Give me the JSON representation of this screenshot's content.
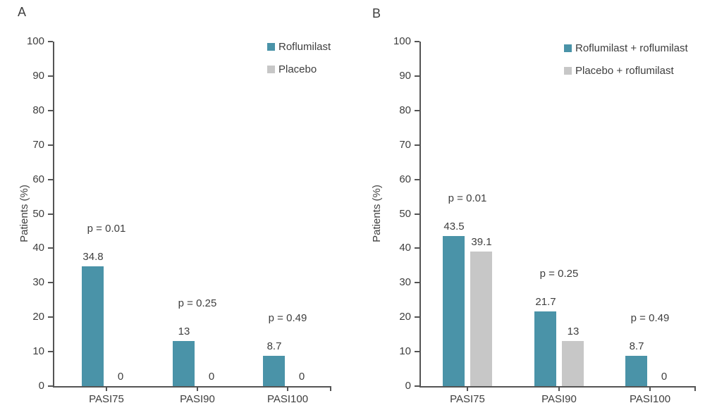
{
  "figure_title": "",
  "colors": {
    "series_teal": "#4a93a8",
    "series_gray": "#c7c7c7",
    "text": "#3e3e3e",
    "axis": "#545454"
  },
  "chart_data": [
    {
      "type": "bar",
      "panel_label": "A",
      "title": "",
      "xlabel": "",
      "ylabel": "Patients (%)",
      "ylim": [
        0,
        100
      ],
      "yticks": [
        0,
        10,
        20,
        30,
        40,
        50,
        60,
        70,
        80,
        90,
        100
      ],
      "grid": false,
      "legend_position": "top-right",
      "categories": [
        "PASI75",
        "PASI90",
        "PASI100"
      ],
      "series": [
        {
          "name": "Roflumilast",
          "color": "#4a93a8",
          "values": [
            34.8,
            13,
            8.7
          ],
          "value_labels": [
            "34.8",
            "13",
            "8.7"
          ]
        },
        {
          "name": "Placebo",
          "color": "#c7c7c7",
          "values": [
            0,
            0,
            0
          ],
          "value_labels": [
            "0",
            "0",
            "0"
          ]
        }
      ],
      "annotations": [
        "p = 0.01",
        "p = 0.25",
        "p = 0.49"
      ]
    },
    {
      "type": "bar",
      "panel_label": "B",
      "title": "",
      "xlabel": "",
      "ylabel": "Patients (%)",
      "ylim": [
        0,
        100
      ],
      "yticks": [
        0,
        10,
        20,
        30,
        40,
        50,
        60,
        70,
        80,
        90,
        100
      ],
      "grid": false,
      "legend_position": "top-right",
      "categories": [
        "PASI75",
        "PASI90",
        "PASI100"
      ],
      "series": [
        {
          "name": "Roflumilast + roflumilast",
          "color": "#4a93a8",
          "values": [
            43.5,
            21.7,
            8.7
          ],
          "value_labels": [
            "43.5",
            "21.7",
            "8.7"
          ]
        },
        {
          "name": "Placebo + roflumilast",
          "color": "#c7c7c7",
          "values": [
            39.1,
            13,
            0
          ],
          "value_labels": [
            "39.1",
            "13",
            "0"
          ]
        }
      ],
      "annotations": [
        "p = 0.01",
        "p = 0.25",
        "p = 0.49"
      ]
    }
  ]
}
